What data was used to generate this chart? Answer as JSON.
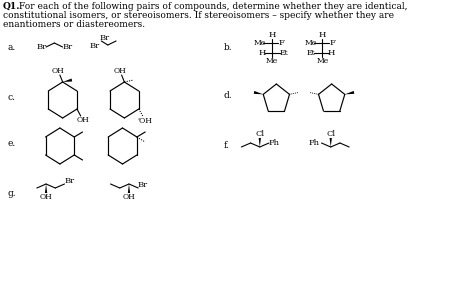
{
  "bg_color": "#ffffff",
  "text_color": "#000000",
  "title_bold": "Q1.",
  "title_rest": " For each of the following pairs of compounds, determine whether they are identical,",
  "title_line2": "constitutional isomers, or stereoisomers. If stereoisomers – specify whether they are",
  "title_line3": "enantiomers or diastereomers.",
  "figw": 4.74,
  "figh": 2.93,
  "dpi": 100
}
